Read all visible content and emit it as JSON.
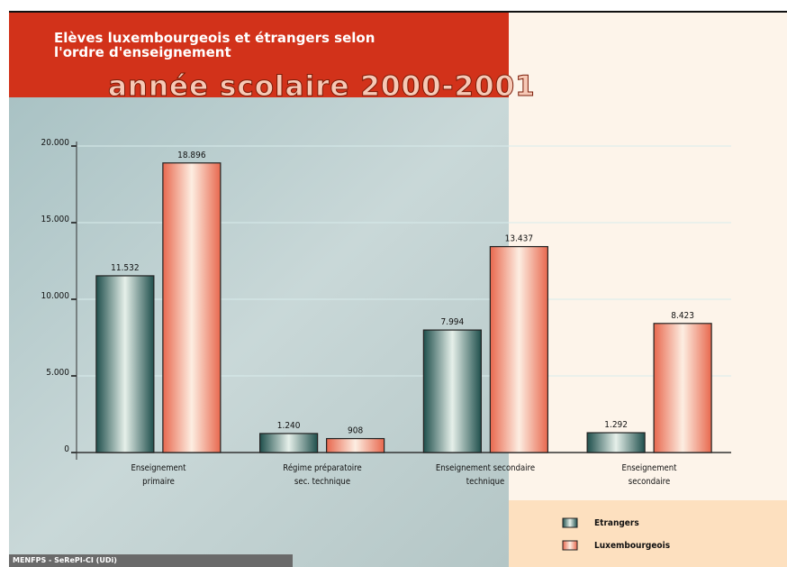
{
  "chart_data": {
    "type": "bar",
    "title": "Elèves luxembourgeois et étrangers selon\nl'ordre d'enseignement",
    "subtitle": "année scolaire 2000-2001",
    "source": "MENFPS - SeRePI-CI (UDi)",
    "categories": [
      "Enseignement\nprimaire",
      "Régime préparatoire\nsec. technique",
      "Enseignement secondaire\ntechnique",
      "Enseignement\nsecondaire"
    ],
    "series": [
      {
        "name": "Etrangers",
        "color": "#1f4f4c",
        "values": [
          11532,
          1240,
          7994,
          1292
        ],
        "value_labels": [
          "11.532",
          "1.240",
          "7.994",
          "1.292"
        ]
      },
      {
        "name": "Luxembourgeois",
        "color": "#e8684e",
        "values": [
          18896,
          908,
          13437,
          8423
        ],
        "value_labels": [
          "18.896",
          "908",
          "13.437",
          "8.423"
        ]
      }
    ],
    "ylim": [
      0,
      20000
    ],
    "yticks": [
      0,
      {
        "value": 5000,
        "label": "5.000"
      },
      {
        "value": 10000,
        "label": "10.000"
      },
      {
        "value": 15000,
        "label": "15.000"
      },
      {
        "value": 20000,
        "label": "20.000"
      }
    ],
    "grid": true,
    "legend": "bottom-right"
  }
}
